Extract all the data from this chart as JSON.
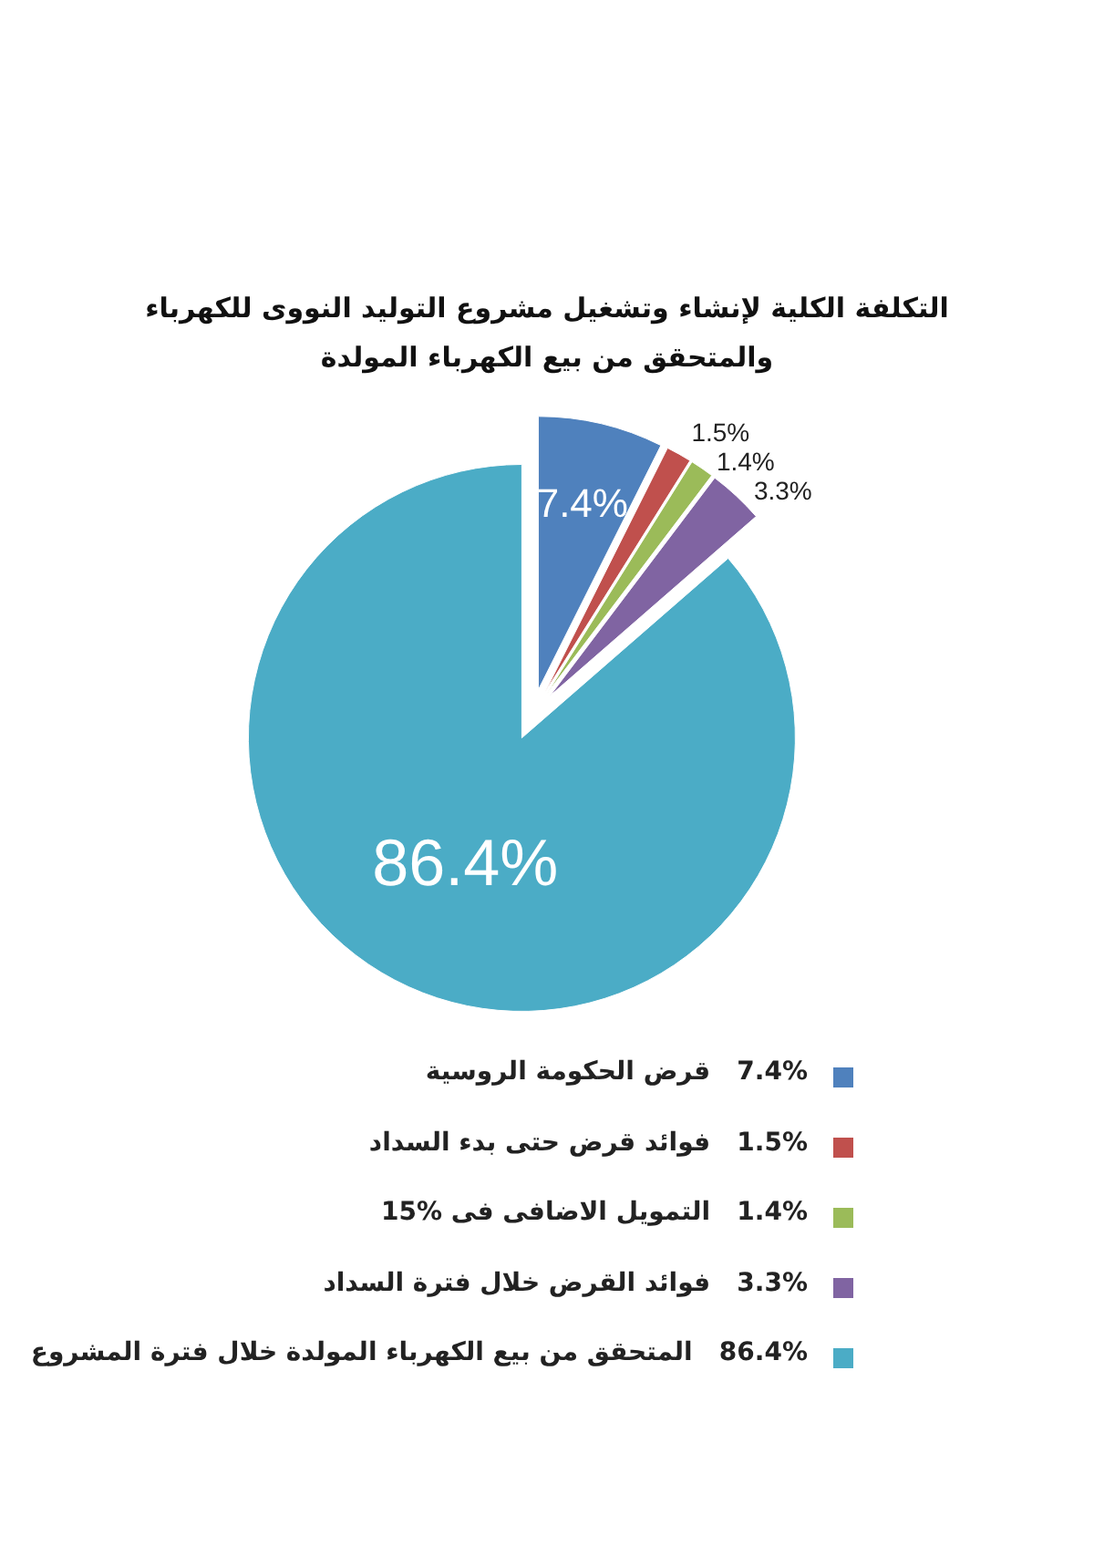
{
  "chart_data": {
    "type": "pie",
    "title": "التكلفة الكلية لإنشاء وتشغيل مشروع التوليد النووى للكهرباء والمتحقق من بيع الكهرباء المولدة",
    "categories": [
      "قرض الحكومة الروسية",
      "فوائد قرض حتى بدء السداد",
      "التمويل الاضافى فى 15%",
      "فوائد القرض خلال فترة السداد",
      "المتحقق من بيع الكهرباء المولدة خلال فترة المشروع"
    ],
    "values": [
      7.4,
      1.5,
      1.4,
      3.3,
      86.4
    ],
    "colors": [
      "#4f81bd",
      "#c0504d",
      "#9bbb59",
      "#8064a2",
      "#4bacc6"
    ],
    "value_labels": [
      "7.4%",
      "1.5%",
      "1.4%",
      "3.3%",
      "86.4%"
    ],
    "legend": "bottom"
  }
}
